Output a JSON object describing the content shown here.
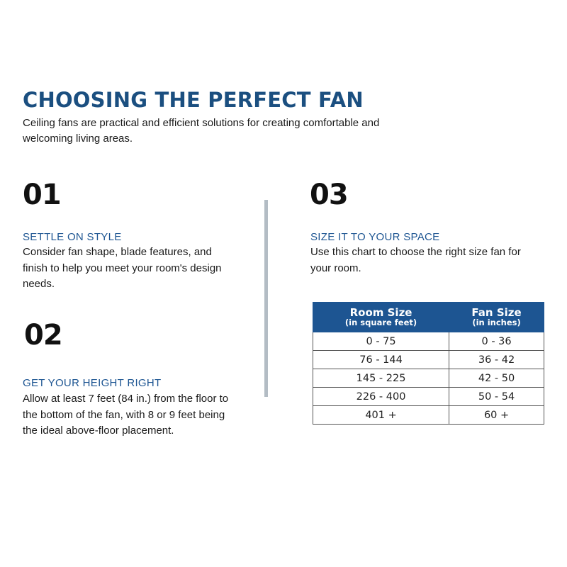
{
  "title": "CHOOSING THE PERFECT FAN",
  "subtitle": "Ceiling fans are practical and efficient solutions for creating comfortable and welcoming living areas.",
  "sections": [
    {
      "number": "01",
      "heading": "SETTLE ON STYLE",
      "body": "Consider fan shape, blade features, and finish to help you meet your room's design needs."
    },
    {
      "number": "02",
      "heading": "GET YOUR HEIGHT RIGHT",
      "body": "Allow at least 7 feet (84 in.) from the floor to the bottom of the fan, with 8 or 9 feet being the ideal above-floor placement."
    },
    {
      "number": "03",
      "heading": "SIZE IT TO YOUR SPACE",
      "body": "Use this chart to choose the right size fan for your room."
    }
  ],
  "table": {
    "headers": [
      {
        "label": "Room Size",
        "sub": "(in square feet)"
      },
      {
        "label": "Fan Size",
        "sub": "(in inches)"
      }
    ],
    "rows": [
      [
        "0 - 75",
        "0 - 36"
      ],
      [
        "76 - 144",
        "36 - 42"
      ],
      [
        "145 - 225",
        "42 - 50"
      ],
      [
        "226 - 400",
        "50 - 54"
      ],
      [
        "401 +",
        "60 +"
      ]
    ]
  },
  "colors": {
    "title": "#1b4f80",
    "accent": "#1d5592",
    "divider": "#b3bcc4"
  }
}
